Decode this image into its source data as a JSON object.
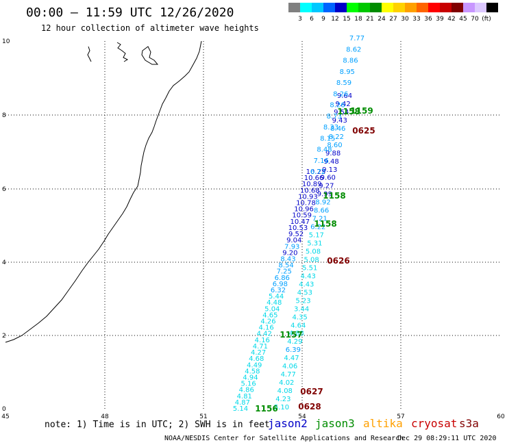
{
  "header": {
    "title": "00:00 – 11:59 UTC 12/26/2020",
    "subtitle": "12 hour collection of altimeter wave heights"
  },
  "scale": {
    "colors": [
      "#808080",
      "#00ffff",
      "#00c8ff",
      "#0064ff",
      "#0000c8",
      "#00ff00",
      "#00c800",
      "#008c00",
      "#ffff00",
      "#ffd200",
      "#ffa000",
      "#ff6400",
      "#ff0000",
      "#c80000",
      "#800000",
      "#c896ff",
      "#dcc8ff",
      "#000000"
    ],
    "labels": [
      "3",
      "6",
      "9",
      "12",
      "15",
      "18",
      "21",
      "24",
      "27",
      "30",
      "33",
      "36",
      "39",
      "42",
      "45",
      "70",
      "(ft)"
    ]
  },
  "axes": {
    "lon_labels": [
      "45",
      "48",
      "51",
      "54",
      "57",
      "60"
    ],
    "lat_labels": [
      "0",
      "2",
      "4",
      "6",
      "8",
      "10"
    ]
  },
  "tracks": {
    "time_labels": [
      {
        "text": "1158",
        "color": "#008c00"
      },
      {
        "text": "1158",
        "color": "#008c00"
      },
      {
        "text": "1158",
        "color": "#008c00"
      },
      {
        "text": "1157",
        "color": "#008c00"
      },
      {
        "text": "1156",
        "color": "#008c00"
      },
      {
        "text": "1159",
        "color": "#008c00"
      },
      {
        "text": "0625",
        "color": "#800000"
      },
      {
        "text": "0626",
        "color": "#800000"
      },
      {
        "text": "0627",
        "color": "#800000"
      },
      {
        "text": "0628",
        "color": "#800000"
      }
    ],
    "track_a": [
      "5.14",
      "4.87",
      "4.81",
      "4.86",
      "5.16",
      "4.94",
      "4.58",
      "4.49",
      "4.68",
      "4.27",
      "4.71",
      "4.16",
      "4.42",
      "4.16",
      "4.26",
      "4.65",
      "5.04",
      "4.48",
      "5.44",
      "6.32",
      "6.98",
      "6.86",
      "7.25",
      "8.54",
      "8.43",
      "9.20",
      "7.93",
      "9.04",
      "9.52",
      "10.53",
      "10.47",
      "10.59",
      "10.96",
      "10.78",
      "10.93",
      "10.68",
      "10.89",
      "10.66",
      "10.25"
    ],
    "track_b": [
      "5.10",
      "4.23",
      "4.08",
      "4.02",
      "4.77",
      "4.06",
      "4.47",
      "6.39",
      "4.29",
      "4.88",
      "4.64",
      "4.35",
      "3.44",
      "5.23",
      "4.53",
      "4.43",
      "4.43",
      "5.51",
      "5.08",
      "5.08",
      "5.31",
      "5.17",
      "6.22",
      "7.21",
      "8.66",
      "8.92",
      "9.99",
      "9.27",
      "9.60",
      "9.13",
      "9.48",
      "9.88",
      "8.60",
      "8.22",
      "8.46",
      "9.43",
      "9.54",
      "9.42",
      "9.64"
    ],
    "track_c": [
      "6.72",
      "7.16",
      "8.48",
      "8.15",
      "8.33",
      "8.73",
      "8.26",
      "8.26",
      "8.59",
      "8.95",
      "8.86",
      "8.62",
      "7.77"
    ]
  },
  "legend": {
    "note": "note: 1) Time is in UTC; 2) SWH is in feet",
    "satellites": [
      {
        "name": "jason2",
        "color": "#0000c8"
      },
      {
        "name": "jason3",
        "color": "#008c00"
      },
      {
        "name": "altika",
        "color": "#ffa000"
      },
      {
        "name": "cryosat",
        "color": "#c80000"
      },
      {
        "name": "s3a",
        "color": "#800000"
      }
    ]
  },
  "footer": {
    "credit": "NOAA/NESDIS Center for Satellite Applications and Research",
    "timestamp": "Dec 29 08:29:11 UTC 2020"
  }
}
